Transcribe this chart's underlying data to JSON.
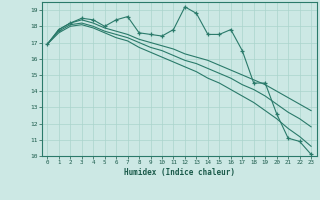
{
  "xlabel": "Humidex (Indice chaleur)",
  "bg_color": "#cce8e4",
  "grid_color": "#aad4cc",
  "line_color": "#2a7a6a",
  "xlim": [
    -0.5,
    23.5
  ],
  "ylim": [
    10,
    19.5
  ],
  "yticks": [
    10,
    11,
    12,
    13,
    14,
    15,
    16,
    17,
    18,
    19
  ],
  "xticks": [
    0,
    1,
    2,
    3,
    4,
    5,
    6,
    7,
    8,
    9,
    10,
    11,
    12,
    13,
    14,
    15,
    16,
    17,
    18,
    19,
    20,
    21,
    22,
    23
  ],
  "series_main": [
    16.9,
    17.8,
    18.2,
    18.5,
    18.4,
    18.0,
    18.4,
    18.6,
    17.6,
    17.5,
    17.4,
    17.8,
    19.2,
    18.8,
    17.5,
    17.5,
    17.8,
    16.5,
    14.5,
    14.5,
    12.6,
    11.1,
    10.9,
    10.1
  ],
  "line1_y": [
    16.9,
    17.8,
    18.2,
    18.4,
    18.2,
    17.9,
    17.7,
    17.5,
    17.2,
    17.0,
    16.8,
    16.6,
    16.3,
    16.1,
    15.9,
    15.6,
    15.3,
    15.0,
    14.7,
    14.4,
    14.0,
    13.6,
    13.2,
    12.8
  ],
  "line2_y": [
    16.9,
    17.7,
    18.1,
    18.2,
    18.0,
    17.7,
    17.5,
    17.3,
    17.0,
    16.7,
    16.5,
    16.2,
    15.9,
    15.7,
    15.4,
    15.1,
    14.8,
    14.4,
    14.1,
    13.7,
    13.2,
    12.7,
    12.3,
    11.8
  ],
  "line3_y": [
    16.9,
    17.6,
    18.0,
    18.1,
    17.9,
    17.6,
    17.3,
    17.1,
    16.7,
    16.4,
    16.1,
    15.8,
    15.5,
    15.2,
    14.8,
    14.5,
    14.1,
    13.7,
    13.3,
    12.8,
    12.3,
    11.7,
    11.2,
    10.6
  ]
}
